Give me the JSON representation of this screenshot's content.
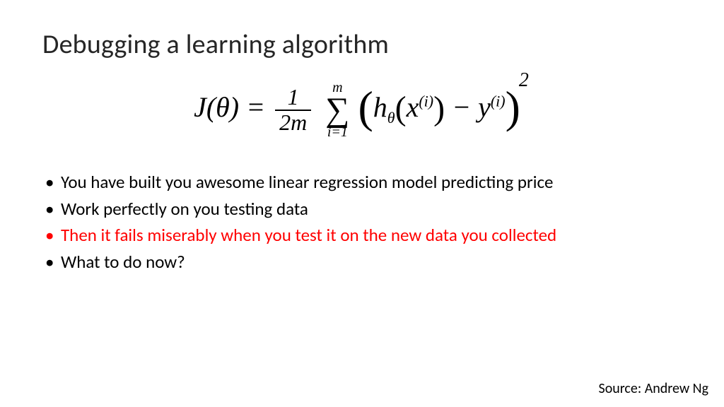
{
  "title": "Debugging a learning algorithm",
  "formula": {
    "lhs": "J(θ) = ",
    "frac_num": "1",
    "frac_den": "2m",
    "sum_upper": "m",
    "sum_lower": "i=1",
    "h": "h",
    "theta_sub": "θ",
    "x": "x",
    "idx": "(i)",
    "minus": " − ",
    "y": "y",
    "exp": "2"
  },
  "bullets": [
    {
      "text": "You have built you awesome linear regression model predicting price",
      "color": "#000000"
    },
    {
      "text": "Work perfectly on you testing data",
      "color": "#000000"
    },
    {
      "text": "Then it fails miserably when you test it on the new data you collected",
      "color": "#ff0000"
    },
    {
      "text": "What to do now?",
      "color": "#000000"
    }
  ],
  "source": "Source: Andrew Ng",
  "style": {
    "background_color": "#ffffff",
    "title_fontsize": 38,
    "body_fontsize": 25,
    "formula_fontsize": 40,
    "highlight_color": "#ff0000",
    "text_color": "#000000"
  }
}
